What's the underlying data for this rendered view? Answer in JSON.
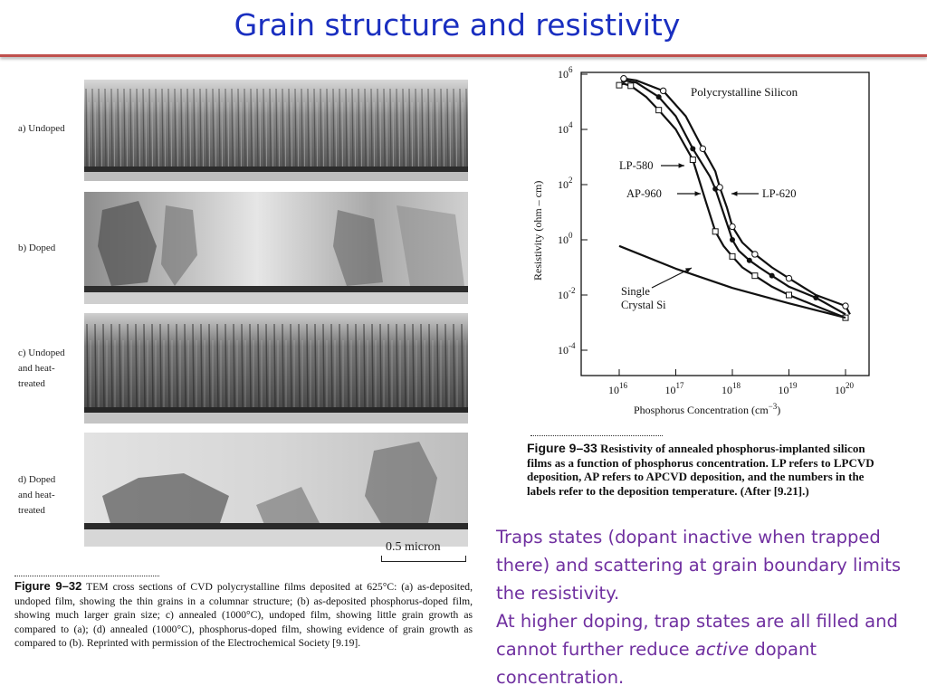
{
  "slide": {
    "title": "Grain structure and resistivity"
  },
  "figure_9_32": {
    "panels": [
      {
        "label": "a) Undoped",
        "tone": "columnar-dense"
      },
      {
        "label": "b) Doped",
        "tone": "large-grains"
      },
      {
        "label": "c) Undoped\nand heat-\ntreated",
        "tone": "columnar-dense"
      },
      {
        "label": "d) Doped\nand heat-\ntreated",
        "tone": "large-grains-grown"
      }
    ],
    "scale_bar": "0.5 micron",
    "caption_prefix": "Figure 9–32",
    "caption_text": "TEM cross sections of CVD polycrystalline films deposited at 625°C: (a) as-deposited, undoped film, showing the thin grains in a columnar structure; (b) as-deposited phosphorus-doped film, showing much larger grain size; c) annealed (1000°C), undoped film, showing little grain growth as compared to (a); (d) annealed (1000°C), phosphorus-doped film, showing evidence of grain growth as compared to (b). Reprinted with permission of the Electrochemical Society [9.19]."
  },
  "figure_9_33": {
    "caption_prefix": "Figure 9–33",
    "caption_text": "Resistivity of annealed phosphorus-implanted silicon films as a function of phosphorus concentration. LP refers to LPCVD deposition, AP refers to APCVD deposition, and the numbers in the labels refer to the deposition temperature. (After [9.21].)"
  },
  "chart_data": {
    "type": "line",
    "title": "Polycrystalline Silicon",
    "xlabel": "Phosphorus Concentration (cm⁻³)",
    "ylabel": "Resistivity (ohm – cm)",
    "x_scale": "log",
    "y_scale": "log",
    "xlim": [
      1e+16,
      1e+20
    ],
    "ylim": [
      0.0001,
      1000000.0
    ],
    "x_ticks": [
      {
        "value": 1e+16,
        "mantissa": "10",
        "exp": "16"
      },
      {
        "value": 1e+17,
        "mantissa": "10",
        "exp": "17"
      },
      {
        "value": 1e+18,
        "mantissa": "10",
        "exp": "18"
      },
      {
        "value": 1e+19,
        "mantissa": "10",
        "exp": "19"
      },
      {
        "value": 1e+20,
        "mantissa": "10",
        "exp": "20"
      }
    ],
    "y_ticks": [
      {
        "value": 1000000.0,
        "mantissa": "10",
        "exp": "6"
      },
      {
        "value": 10000.0,
        "mantissa": "10",
        "exp": "4"
      },
      {
        "value": 100.0,
        "mantissa": "10",
        "exp": "2"
      },
      {
        "value": 1.0,
        "mantissa": "10",
        "exp": "0"
      },
      {
        "value": 0.01,
        "mantissa": "10",
        "exp": "-2"
      },
      {
        "value": 0.0001,
        "mantissa": "10",
        "exp": "-4"
      }
    ],
    "series": [
      {
        "name": "LP-580",
        "marker": "square",
        "x": [
          1e+16,
          1.2e+16,
          1.6e+16,
          3e+16,
          5e+16,
          1e+17,
          2e+17,
          3.5e+17,
          5e+17,
          7e+17,
          1e+18,
          1.5e+18,
          2.5e+18,
          5e+18,
          1e+19,
          3e+19,
          1e+20
        ],
        "y": [
          400000,
          450000,
          380000,
          150000,
          50000,
          10000,
          800,
          20,
          2,
          0.6,
          0.25,
          0.1,
          0.05,
          0.02,
          0.01,
          0.004,
          0.0015
        ]
      },
      {
        "name": "AP-960",
        "marker": "circle",
        "x": [
          1.2e+16,
          2e+16,
          5e+16,
          1e+17,
          2e+17,
          4e+17,
          5e+17,
          8e+17,
          1e+18,
          1.3e+18,
          2e+18,
          3e+18,
          5e+18,
          1e+19,
          3e+19,
          1e+20
        ],
        "y": [
          600000,
          500000,
          150000,
          30000,
          2000,
          200,
          70,
          4,
          1,
          0.4,
          0.18,
          0.1,
          0.05,
          0.02,
          0.008,
          0.002
        ]
      },
      {
        "name": "LP-620",
        "marker": "circle-open",
        "x": [
          1.2e+16,
          2e+16,
          6e+16,
          1.5e+17,
          3e+17,
          5e+17,
          6e+17,
          8e+17,
          1e+18,
          1.5e+18,
          2.5e+18,
          5e+18,
          1e+19,
          3e+19,
          1e+20,
          1.2e+20
        ],
        "y": [
          700000,
          600000,
          250000,
          30000,
          2000,
          300,
          80,
          15,
          3,
          0.8,
          0.3,
          0.1,
          0.04,
          0.01,
          0.004,
          0.002
        ]
      },
      {
        "name": "Single Crystal Si",
        "marker": "none",
        "x": [
          1e+16,
          1e+17,
          1e+18,
          1e+19,
          1e+20
        ],
        "y": [
          0.6,
          0.09,
          0.018,
          0.005,
          0.0015
        ]
      }
    ],
    "annotations": [
      "LP-580",
      "AP-960",
      "LP-620",
      "Single Crystal Si"
    ],
    "legend": "none",
    "grid": false
  },
  "notes": {
    "paragraph1": "Traps states (dopant inactive when trapped there) and scattering at grain boundary limits the resistivity.",
    "paragraph2_before": "At higher doping, trap states are all filled and cannot further reduce ",
    "paragraph2_italic": "active",
    "paragraph2_after": " dopant concentration."
  }
}
